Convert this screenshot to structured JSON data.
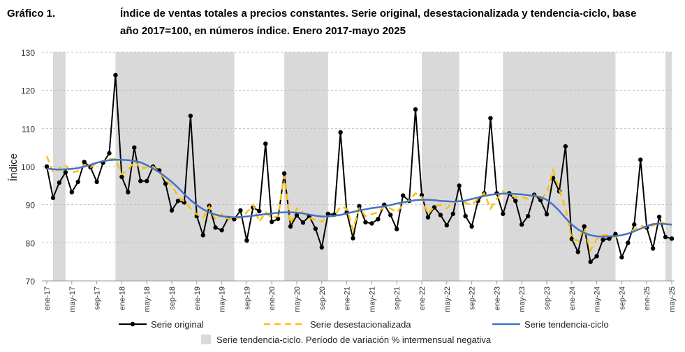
{
  "header": {
    "label": "Gráfico 1.",
    "title_line1": "Índice de ventas totales a precios constantes. Serie original, desestacionalizada y tendencia-ciclo, base",
    "title_line2": "año 2017=100, en números índice. Enero 2017-mayo 2025"
  },
  "chart_data": {
    "type": "line",
    "title": "Índice de ventas totales a precios constantes. Serie original, desestacionalizada y tendencia-ciclo, base año 2017=100, en números índice. Enero 2017-mayo 2025",
    "ylabel": "Índice",
    "xlabel": "",
    "ylim": [
      70,
      130
    ],
    "yticks": [
      70,
      80,
      90,
      100,
      110,
      120,
      130
    ],
    "grid": "horizontal dashed",
    "legend_placement": "bottom",
    "x_start": "ene-17",
    "x_end": "may-25",
    "xtick_labels": [
      "ene-17",
      "may-17",
      "sep-17",
      "ene-18",
      "may-18",
      "sep-18",
      "ene-19",
      "may-19",
      "sep-19",
      "ene-20",
      "may-20",
      "sep-20",
      "ene-21",
      "may-21",
      "sep-21",
      "ene-22",
      "may-22",
      "sep-22",
      "ene-23",
      "may-23",
      "sep-23",
      "ene-24",
      "may-24",
      "sep-24",
      "ene-25",
      "may-25"
    ],
    "shaded_periods": {
      "name": "Serie tendencia-ciclo. Período de variación % intermensual negativa",
      "color": "#d9d9d9",
      "ranges": [
        [
          "feb-17",
          "abr-17"
        ],
        [
          "dic-17",
          "jul-19"
        ],
        [
          "mar-20",
          "oct-20"
        ],
        [
          "ene-22",
          "jul-22"
        ],
        [
          "feb-23",
          "ago-24"
        ],
        [
          "abr-25",
          "may-25"
        ]
      ]
    },
    "series": [
      {
        "name": "Serie original",
        "color": "#000000",
        "style": "solid-markers",
        "values": [
          100,
          91.8,
          95.8,
          98.5,
          93.3,
          96,
          101.2,
          99.8,
          96,
          101,
          103.5,
          124,
          97.3,
          93.3,
          105,
          96.2,
          96.2,
          100,
          99,
          95.5,
          88.5,
          91,
          90.6,
          113.3,
          87,
          82,
          89.7,
          84,
          83.3,
          86.5,
          86.2,
          88.5,
          80.6,
          89.3,
          88.3,
          106,
          85.5,
          86.3,
          98.2,
          84.3,
          87.2,
          85.3,
          87,
          83.7,
          78.8,
          87.6,
          87.4,
          109,
          88,
          81.2,
          89.6,
          85.4,
          85.1,
          86.2,
          90,
          87.3,
          83.6,
          92.4,
          91,
          115,
          92.5,
          86.7,
          89.3,
          87.3,
          84.6,
          87.6,
          95,
          87,
          84.3,
          91,
          93,
          112.7,
          93,
          87.6,
          93,
          91,
          84.8,
          87,
          92.6,
          91.2,
          87.5,
          97,
          93.5,
          105.3,
          81,
          77.6,
          84.3,
          75,
          76.5,
          80.8,
          81.1,
          82.3,
          76.2,
          80,
          84.8,
          101.8,
          84,
          78.5,
          86.8,
          81.5,
          81.1
        ]
      },
      {
        "name": "Serie desestacionalizada",
        "color": "#ffc000",
        "style": "dashed",
        "values": [
          102.7,
          98.5,
          99.5,
          100.3,
          98.5,
          98.8,
          100.5,
          99.8,
          101.0,
          101.5,
          102.0,
          102.0,
          98.0,
          99.0,
          101.5,
          99.5,
          99.8,
          100.0,
          98.5,
          96.5,
          95.0,
          92.3,
          90.8,
          89.0,
          87.5,
          86.5,
          89.5,
          86.0,
          87.5,
          86.2,
          86.5,
          86.6,
          88.0,
          90.0,
          85.5,
          88.0,
          86.5,
          87.0,
          97.5,
          85.0,
          89.0,
          88.0,
          86.5,
          86.0,
          85.5,
          87.0,
          87.0,
          89.5,
          89.0,
          83.5,
          89.0,
          87.0,
          87.5,
          88.0,
          89.5,
          89.0,
          88.0,
          90.0,
          91.2,
          93.0,
          92.0,
          87.5,
          89.5,
          90.0,
          89.0,
          90.5,
          91.0,
          90.5,
          90.0,
          91.5,
          93.0,
          89.0,
          91.5,
          93.5,
          92.5,
          92.0,
          92.0,
          91.5,
          92.5,
          91.5,
          93.0,
          99.0,
          94.0,
          89.0,
          81.0,
          80.5,
          84.0,
          78.0,
          81.0,
          82.0,
          82.0,
          81.5,
          82.0,
          82.5,
          83.5,
          84.5,
          84.0,
          84.5,
          85.5,
          85.0,
          84.5
        ]
      },
      {
        "name": "Serie tendencia-ciclo",
        "color": "#4472c4",
        "style": "solid",
        "values": [
          99.5,
          99.3,
          99.2,
          99.3,
          99.4,
          99.6,
          100.0,
          100.5,
          101.0,
          101.4,
          101.7,
          101.8,
          101.8,
          101.7,
          101.5,
          101.1,
          100.4,
          99.5,
          98.5,
          97.3,
          96.0,
          94.5,
          92.8,
          91.2,
          89.9,
          88.8,
          88.0,
          87.4,
          87.0,
          86.8,
          86.7,
          86.8,
          86.9,
          87.1,
          87.3,
          87.5,
          87.7,
          87.9,
          88.0,
          88.0,
          87.9,
          87.7,
          87.4,
          87.1,
          86.9,
          86.9,
          87.1,
          87.3,
          87.7,
          88.1,
          88.5,
          88.8,
          89.1,
          89.3,
          89.6,
          89.9,
          90.3,
          90.6,
          90.9,
          91.2,
          91.3,
          91.3,
          91.2,
          91.0,
          90.9,
          90.8,
          90.9,
          91.1,
          91.5,
          91.9,
          92.3,
          92.6,
          92.8,
          92.9,
          92.9,
          92.8,
          92.7,
          92.5,
          92.3,
          92.0,
          91.3,
          90.0,
          88.4,
          86.5,
          84.8,
          83.5,
          82.6,
          82.0,
          81.7,
          81.6,
          81.7,
          81.8,
          82.0,
          82.4,
          83.0,
          83.7,
          84.4,
          84.9,
          85.0,
          84.9,
          84.8
        ]
      }
    ]
  }
}
